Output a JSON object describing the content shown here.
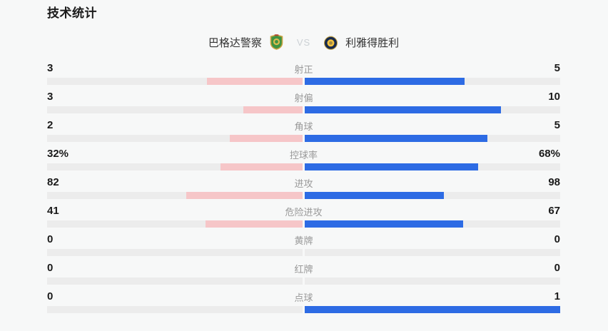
{
  "title": "技术统计",
  "teams": {
    "home": {
      "name": "巴格达警察",
      "badge_icon": "green-gold-shield-crest"
    },
    "away": {
      "name": "利雅得胜利",
      "badge_icon": "navy-gold-circle-crest"
    },
    "vs_label": "VS"
  },
  "colors": {
    "background": "#f7f8f8",
    "home_bar_fill": "#f6c6c8",
    "away_bar_fill": "#2d6be4",
    "bar_track": "#ececec",
    "value_text": "#1a1a1a",
    "label_text": "#999999",
    "vs_text": "#ccd1d5"
  },
  "stats": {
    "rows": [
      {
        "label": "射正",
        "home_display": "3",
        "away_display": "5",
        "home_value": 3,
        "away_value": 5
      },
      {
        "label": "射偏",
        "home_display": "3",
        "away_display": "10",
        "home_value": 3,
        "away_value": 10
      },
      {
        "label": "角球",
        "home_display": "2",
        "away_display": "5",
        "home_value": 2,
        "away_value": 5
      },
      {
        "label": "控球率",
        "home_display": "32%",
        "away_display": "68%",
        "home_value": 32,
        "away_value": 68
      },
      {
        "label": "进攻",
        "home_display": "82",
        "away_display": "98",
        "home_value": 82,
        "away_value": 98
      },
      {
        "label": "危险进攻",
        "home_display": "41",
        "away_display": "67",
        "home_value": 41,
        "away_value": 67
      },
      {
        "label": "黄牌",
        "home_display": "0",
        "away_display": "0",
        "home_value": 0,
        "away_value": 0
      },
      {
        "label": "红牌",
        "home_display": "0",
        "away_display": "0",
        "home_value": 0,
        "away_value": 0
      },
      {
        "label": "点球",
        "home_display": "0",
        "away_display": "1",
        "home_value": 0,
        "away_value": 1
      }
    ]
  },
  "chart_data": {
    "type": "bar",
    "title": "技术统计",
    "orientation": "horizontal-paired-from-center",
    "categories": [
      "射正",
      "射偏",
      "角球",
      "控球率",
      "进攻",
      "危险进攻",
      "黄牌",
      "红牌",
      "点球"
    ],
    "series": [
      {
        "name": "巴格达警察",
        "color": "#f6c6c8",
        "values": [
          3,
          3,
          2,
          32,
          82,
          41,
          0,
          0,
          0
        ],
        "display": [
          "3",
          "3",
          "2",
          "32%",
          "82",
          "41",
          "0",
          "0",
          "0"
        ]
      },
      {
        "name": "利雅得胜利",
        "color": "#2d6be4",
        "values": [
          5,
          10,
          5,
          68,
          98,
          67,
          0,
          0,
          1
        ],
        "display": [
          "5",
          "10",
          "5",
          "68%",
          "98",
          "67",
          "0",
          "0",
          "1"
        ]
      }
    ],
    "bar_scale": "each side fill fraction = value / (home_value + away_value); empty track when both are 0",
    "legend_position": "none",
    "grid": false
  }
}
